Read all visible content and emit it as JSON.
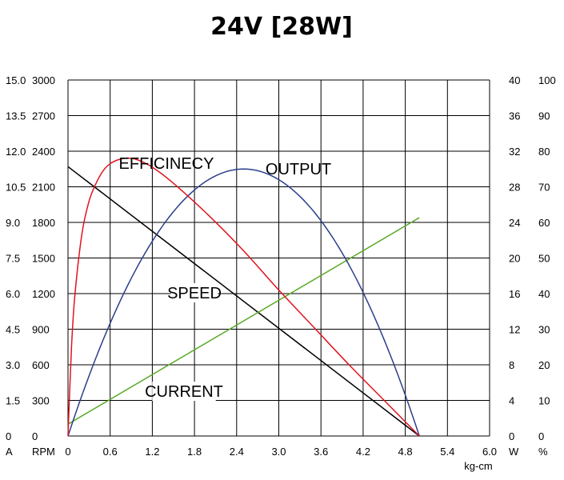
{
  "chart_data": {
    "type": "line",
    "title": "24V [28W]",
    "x": {
      "label": "kg-cm",
      "range": [
        0,
        6.0
      ],
      "ticks": [
        "0",
        "0.6",
        "1.2",
        "1.8",
        "2.4",
        "3.0",
        "3.6",
        "4.2",
        "4.8",
        "5.4",
        "6.0"
      ]
    },
    "y_axes": {
      "current": {
        "unit": "A",
        "range": [
          0,
          15.0
        ],
        "ticks": [
          "0",
          "1.5",
          "3.0",
          "4.5",
          "6.0",
          "7.5",
          "9.0",
          "10.5",
          "12.0",
          "13.5",
          "15.0"
        ]
      },
      "speed": {
        "unit": "RPM",
        "range": [
          0,
          3000
        ],
        "ticks": [
          "0",
          "300",
          "600",
          "900",
          "1200",
          "1500",
          "1800",
          "2100",
          "2400",
          "2700",
          "3000"
        ]
      },
      "output": {
        "unit": "W",
        "range": [
          0,
          40
        ],
        "ticks": [
          "0",
          "4",
          "8",
          "12",
          "16",
          "20",
          "24",
          "28",
          "32",
          "36",
          "40"
        ]
      },
      "efficiency": {
        "unit": "%",
        "range": [
          0,
          100
        ],
        "ticks": [
          "0",
          "10",
          "20",
          "30",
          "40",
          "50",
          "60",
          "70",
          "80",
          "90",
          "100"
        ]
      }
    },
    "grid": true,
    "series": [
      {
        "name": "SPEED",
        "axis": "speed",
        "color": "#000000",
        "x": [
          0,
          5.0
        ],
        "y": [
          2270,
          0
        ]
      },
      {
        "name": "CURRENT",
        "axis": "current",
        "color": "#5aaa28",
        "x": [
          0,
          5.0
        ],
        "y": [
          0.5,
          9.2
        ]
      },
      {
        "name": "OUTPUT",
        "axis": "output",
        "color": "#2b3f8c",
        "x": [
          0,
          0.5,
          1.0,
          1.5,
          2.0,
          2.5,
          3.0,
          3.5,
          4.0,
          4.5,
          5.0
        ],
        "y": [
          0,
          10.6,
          19.0,
          25.1,
          28.8,
          30.0,
          28.8,
          25.1,
          19.0,
          10.6,
          0
        ]
      },
      {
        "name": "EFFICINECY",
        "axis": "efficiency",
        "color": "#e0141e",
        "x": [
          0,
          0.05,
          0.1,
          0.2,
          0.3,
          0.4,
          0.5,
          0.6,
          0.7,
          0.8,
          0.9,
          1.0,
          1.2,
          1.5,
          2.0,
          2.5,
          3.0,
          3.5,
          4.0,
          4.5,
          5.0
        ],
        "y": [
          0,
          25,
          40,
          57,
          66,
          71,
          74.5,
          76.5,
          77.5,
          78,
          78,
          77.5,
          75.5,
          71,
          62,
          52,
          41,
          30.5,
          20,
          10,
          0
        ]
      }
    ],
    "labels": {
      "efficiency": "EFFICINECY",
      "output": "OUTPUT",
      "speed": "SPEED",
      "current": "CURRENT"
    }
  }
}
